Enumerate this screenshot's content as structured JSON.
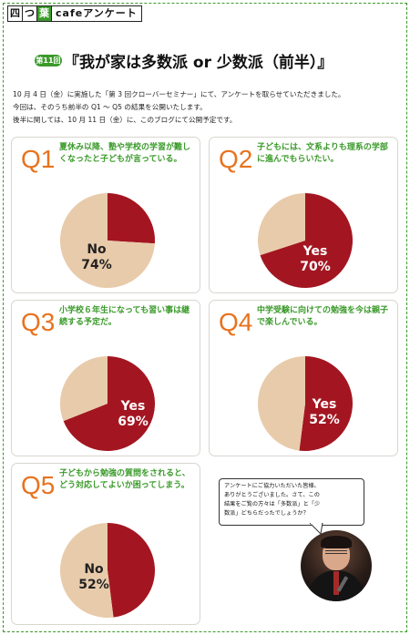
{
  "brand": {
    "chars": [
      "四",
      "つ",
      "葉"
    ],
    "rest": "cafeアンケート"
  },
  "header": {
    "badge": "第11回",
    "title": "『我が家は多数派 or 少数派（前半）』"
  },
  "intro": [
    "10 月 4 日（金）に実施した「第 3 回クローバーセミナー」にて、アンケートを取らせていただきました。",
    "今回は、そのうち前半の Q1 ～ Q5 の結果を公開いたします。",
    "後半に関しては、10 月 11 日（金）に、このブログにて公開予定です。"
  ],
  "colors": {
    "yes": "#a31621",
    "no": "#e8cbaa",
    "accent": "#e8731e",
    "green": "#3a9a2a"
  },
  "chart_data": [
    {
      "type": "pie",
      "question_no": "Q1",
      "question": "夏休み以降、塾や学校の学習が難しくなったと子どもが言っている。",
      "slices": [
        {
          "name": "Yes",
          "value": 26
        },
        {
          "name": "No",
          "value": 74
        }
      ],
      "label": {
        "word": "No",
        "value": "74%"
      }
    },
    {
      "type": "pie",
      "question_no": "Q2",
      "question": "子どもには、文系よりも理系の学部に進んでもらいたい。",
      "slices": [
        {
          "name": "Yes",
          "value": 70
        },
        {
          "name": "No",
          "value": 30
        }
      ],
      "label": {
        "word": "Yes",
        "value": "70%"
      }
    },
    {
      "type": "pie",
      "question_no": "Q3",
      "question": "小学校６年生になっても習い事は継続する予定だ。",
      "slices": [
        {
          "name": "Yes",
          "value": 69
        },
        {
          "name": "No",
          "value": 31
        }
      ],
      "label": {
        "word": "Yes",
        "value": "69%"
      }
    },
    {
      "type": "pie",
      "question_no": "Q4",
      "question": "中学受験に向けての勉強を今は親子で楽しんでいる。",
      "slices": [
        {
          "name": "Yes",
          "value": 52
        },
        {
          "name": "No",
          "value": 48
        }
      ],
      "label": {
        "word": "Yes",
        "value": "52%"
      }
    },
    {
      "type": "pie",
      "question_no": "Q5",
      "question": "子どもから勉強の質問をされると、どう対応してよいか困ってしまう。",
      "slices": [
        {
          "name": "Yes",
          "value": 48
        },
        {
          "name": "No",
          "value": 52
        }
      ],
      "label": {
        "word": "No",
        "value": "52%"
      }
    }
  ],
  "note": {
    "lines": [
      "アンケートにご協力いただいた皆様、",
      "ありがとうございました。さて、この",
      "結果をご覧の方々は「多数派」と「少",
      "数派」どちらだったでしょうか？"
    ]
  }
}
